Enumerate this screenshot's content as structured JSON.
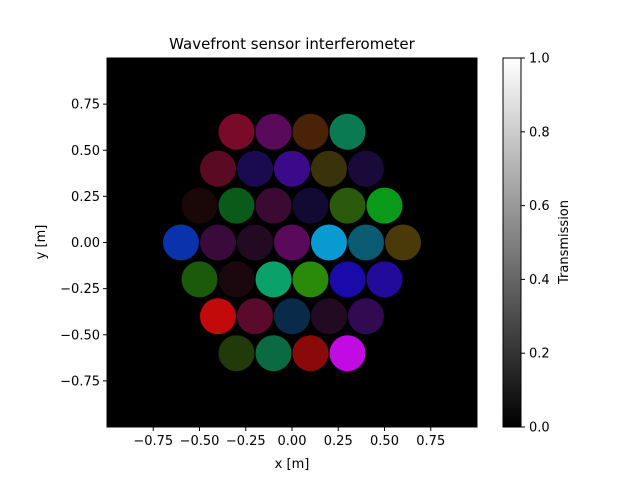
{
  "chart_data": {
    "type": "heatmap",
    "title": "Wavefront sensor interferometer",
    "xlabel": "x [m]",
    "ylabel": "y [m]",
    "xlim": [
      -1.0,
      1.0
    ],
    "ylim": [
      -1.0,
      1.0
    ],
    "x_ticks": [
      -0.75,
      -0.5,
      -0.25,
      0.0,
      0.25,
      0.5,
      0.75
    ],
    "x_tick_labels": [
      "−0.75",
      "−0.50",
      "−0.25",
      "0.00",
      "0.25",
      "0.50",
      "0.75"
    ],
    "y_ticks": [
      -0.75,
      -0.5,
      -0.25,
      0.0,
      0.25,
      0.5,
      0.75
    ],
    "y_tick_labels": [
      "−0.75",
      "−0.50",
      "−0.25",
      "0.00",
      "0.25",
      "0.50",
      "0.75"
    ],
    "background": "#000000",
    "grid": false,
    "colorbar": {
      "label": "Transmission",
      "range": [
        0.0,
        1.0
      ],
      "ticks": [
        0.0,
        0.2,
        0.4,
        0.6,
        0.8,
        1.0
      ],
      "tick_labels": [
        "0.0",
        "0.2",
        "0.4",
        "0.6",
        "0.8",
        "1.0"
      ],
      "colormap": "gray"
    },
    "subaperture_diameter": 0.2,
    "subapertures": [
      {
        "x": -0.3,
        "y": 0.6,
        "color": "#7a0a2a"
      },
      {
        "x": -0.1,
        "y": 0.6,
        "color": "#5a0a5a"
      },
      {
        "x": 0.1,
        "y": 0.6,
        "color": "#4a2208"
      },
      {
        "x": 0.3,
        "y": 0.6,
        "color": "#0a7a52"
      },
      {
        "x": -0.4,
        "y": 0.4,
        "color": "#5a0a22"
      },
      {
        "x": -0.2,
        "y": 0.4,
        "color": "#1a0a50"
      },
      {
        "x": 0.0,
        "y": 0.4,
        "color": "#3a0a8a"
      },
      {
        "x": 0.2,
        "y": 0.4,
        "color": "#3a320a"
      },
      {
        "x": 0.4,
        "y": 0.4,
        "color": "#1a0a3a"
      },
      {
        "x": -0.5,
        "y": 0.2,
        "color": "#1a0808"
      },
      {
        "x": -0.3,
        "y": 0.2,
        "color": "#0a5a1a"
      },
      {
        "x": -0.1,
        "y": 0.2,
        "color": "#3a0a32"
      },
      {
        "x": 0.1,
        "y": 0.2,
        "color": "#120a32"
      },
      {
        "x": 0.3,
        "y": 0.2,
        "color": "#2a5a0a"
      },
      {
        "x": 0.5,
        "y": 0.2,
        "color": "#0a9a1a"
      },
      {
        "x": -0.6,
        "y": 0.0,
        "color": "#0a32aa"
      },
      {
        "x": -0.4,
        "y": 0.0,
        "color": "#3a0a3a"
      },
      {
        "x": -0.2,
        "y": 0.0,
        "color": "#220a22"
      },
      {
        "x": 0.0,
        "y": 0.0,
        "color": "#5a0a5a"
      },
      {
        "x": 0.2,
        "y": 0.0,
        "color": "#0a9ad2"
      },
      {
        "x": 0.4,
        "y": 0.0,
        "color": "#0a5a72"
      },
      {
        "x": 0.6,
        "y": 0.0,
        "color": "#4a3a0a"
      },
      {
        "x": -0.5,
        "y": -0.2,
        "color": "#1a5a0a"
      },
      {
        "x": -0.3,
        "y": -0.2,
        "color": "#1a080e"
      },
      {
        "x": -0.1,
        "y": -0.2,
        "color": "#0aa26a"
      },
      {
        "x": 0.1,
        "y": -0.2,
        "color": "#2a8a0a"
      },
      {
        "x": 0.3,
        "y": -0.2,
        "color": "#1a0aaa"
      },
      {
        "x": 0.5,
        "y": -0.2,
        "color": "#220a9a"
      },
      {
        "x": -0.4,
        "y": -0.4,
        "color": "#c20a0a"
      },
      {
        "x": -0.2,
        "y": -0.4,
        "color": "#5a0a2a"
      },
      {
        "x": 0.0,
        "y": -0.4,
        "color": "#0a2a4a"
      },
      {
        "x": 0.2,
        "y": -0.4,
        "color": "#220a22"
      },
      {
        "x": 0.4,
        "y": -0.4,
        "color": "#320a52"
      },
      {
        "x": -0.3,
        "y": -0.6,
        "color": "#223a0a"
      },
      {
        "x": -0.1,
        "y": -0.6,
        "color": "#0a6a42"
      },
      {
        "x": 0.1,
        "y": -0.6,
        "color": "#8a0a0a"
      },
      {
        "x": 0.3,
        "y": -0.6,
        "color": "#c20ae2"
      }
    ]
  }
}
